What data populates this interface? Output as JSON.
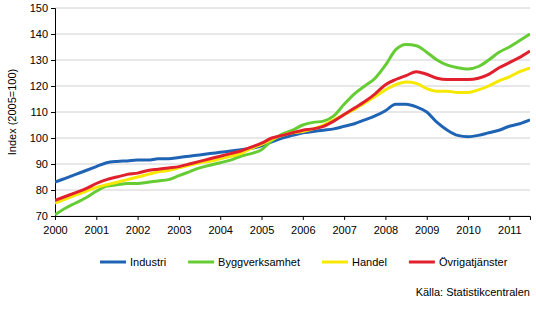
{
  "chart_data": {
    "type": "line",
    "y_label": "Index (2005=100)",
    "annotations": [
      "Källa: Statistikcentralen"
    ],
    "x": [
      2000,
      2000.25,
      2000.5,
      2000.75,
      2001,
      2001.25,
      2001.5,
      2001.75,
      2002,
      2002.25,
      2002.5,
      2002.75,
      2003,
      2003.25,
      2003.5,
      2003.75,
      2004,
      2004.25,
      2004.5,
      2004.75,
      2005,
      2005.25,
      2005.5,
      2005.75,
      2006,
      2006.25,
      2006.5,
      2006.75,
      2007,
      2007.25,
      2007.5,
      2007.75,
      2008,
      2008.25,
      2008.5,
      2008.75,
      2009,
      2009.25,
      2009.5,
      2009.75,
      2010,
      2010.25,
      2010.5,
      2010.75,
      2011,
      2011.25,
      2011.5
    ],
    "series": [
      {
        "name": "Industri",
        "color": "#1f64b4",
        "values": [
          83,
          84.5,
          86,
          87.5,
          89,
          90.5,
          91,
          91.2,
          91.5,
          91.5,
          92,
          92,
          92.5,
          93,
          93.5,
          94,
          94.5,
          95,
          95.5,
          96,
          97,
          98.5,
          100,
          101,
          102,
          102.5,
          103,
          103.5,
          104.5,
          105.5,
          107,
          108.5,
          110.5,
          113,
          113,
          112,
          110,
          106,
          103,
          101,
          100.5,
          101,
          102,
          103,
          104.5,
          105.5,
          107
        ]
      },
      {
        "name": "Byggverksamhet",
        "color": "#66cc33",
        "values": [
          70.5,
          73,
          75,
          77,
          79.5,
          81.5,
          82,
          82.5,
          82.5,
          83,
          83.5,
          84,
          85.5,
          87,
          88.5,
          89.5,
          90.5,
          91.5,
          93,
          94,
          95.5,
          99,
          101.5,
          103,
          105,
          106,
          106.5,
          108.5,
          113,
          117,
          120,
          123,
          128,
          134,
          136,
          135.5,
          133,
          130,
          128,
          127,
          126.5,
          127.5,
          130,
          133,
          135,
          137.5,
          140
        ]
      },
      {
        "name": "Handel",
        "color": "#f7e800",
        "values": [
          75,
          76.5,
          78,
          79.5,
          81,
          82,
          83,
          84,
          85,
          86,
          87,
          87.5,
          88.5,
          89.5,
          90.5,
          91,
          92,
          93,
          94,
          96,
          97.5,
          99.5,
          101,
          102,
          102.5,
          103.5,
          105,
          107,
          109,
          111,
          113.5,
          116,
          118.5,
          120.5,
          121.5,
          121,
          119,
          118,
          118,
          117.5,
          117.5,
          118.5,
          120,
          122,
          123.5,
          125.5,
          127
        ]
      },
      {
        "name": "Övrigatjänster",
        "color": "#e0202c",
        "values": [
          76,
          77.5,
          79,
          80.5,
          82.5,
          84,
          85,
          86,
          86.5,
          87.5,
          88,
          88.5,
          89,
          90,
          91,
          92,
          93,
          94,
          95,
          96.5,
          98,
          100,
          101,
          102,
          103,
          103.5,
          104.5,
          106.5,
          109,
          111.5,
          114,
          117,
          120.5,
          122.5,
          124,
          125.5,
          124.5,
          123,
          122.5,
          122.5,
          122.5,
          123,
          124.5,
          127,
          129,
          131,
          133.5
        ]
      }
    ],
    "xlim": [
      2000,
      2011.5
    ],
    "xticks": [
      2000,
      2001,
      2002,
      2003,
      2004,
      2005,
      2006,
      2007,
      2008,
      2009,
      2010,
      2011
    ],
    "ylim": [
      70,
      150
    ],
    "yticks": [
      70,
      80,
      90,
      100,
      110,
      120,
      130,
      140,
      150
    ],
    "grid": true,
    "legend": "bottom"
  }
}
